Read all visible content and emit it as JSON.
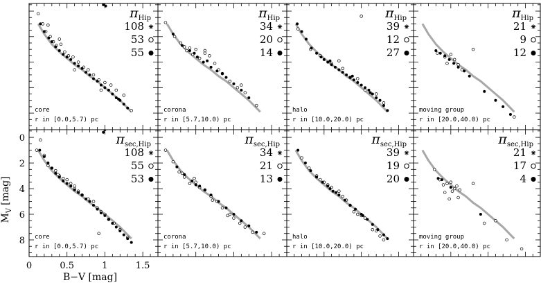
{
  "figure": {
    "ylabel": "M_V [mag]",
    "ylabel_main": "M",
    "ylabel_sub": "V",
    "ylabel_unit": "[mag]",
    "xlabel": "B−V [mag]"
  },
  "chart_data": {
    "type": "scatter",
    "xlim": [
      0,
      1.7
    ],
    "ylim": [
      9.3,
      -0.6
    ],
    "xticks": [
      "0",
      "0.5",
      "1",
      "1.5"
    ],
    "xtick_values": [
      0,
      0.5,
      1,
      1.5
    ],
    "yticks": [
      "0",
      "2",
      "4",
      "6",
      "8"
    ],
    "ytick_values": [
      0,
      2,
      4,
      6,
      8
    ],
    "grid": false,
    "legend_position": "top-right",
    "reference_curve_color": "#a8a8a8",
    "reference_curve": {
      "x": [
        0.12,
        0.2,
        0.3,
        0.4,
        0.5,
        0.6,
        0.7,
        0.8,
        0.9,
        1.0,
        1.1,
        1.2,
        1.3,
        1.35
      ],
      "y": [
        1.0,
        1.8,
        2.6,
        3.2,
        3.7,
        4.2,
        4.6,
        5.1,
        5.5,
        6.0,
        6.5,
        7.0,
        7.6,
        7.9
      ]
    },
    "rows": [
      {
        "legend_symbol": "π",
        "legend_subscript": "Hip",
        "panels": [
          {
            "name": "core",
            "range": "r in [0.0,5.7) pc",
            "counts": [
              {
                "symbol": "star",
                "value": "108"
              },
              {
                "symbol": "open",
                "value": "53"
              },
              {
                "symbol": "filled",
                "value": "55"
              }
            ],
            "open": {
              "x": [
                0.12,
                0.18,
                0.22,
                0.28,
                0.32,
                0.36,
                0.42,
                0.47,
                0.52,
                0.58,
                0.65,
                0.72,
                0.78,
                0.85,
                0.92,
                1.0,
                1.08,
                1.15,
                1.25,
                0.25,
                0.4,
                0.6,
                0.95,
                1.35
              ],
              "y": [
                0.2,
                1.0,
                1.6,
                2.0,
                2.4,
                2.7,
                2.6,
                3.2,
                3.5,
                3.6,
                4.0,
                4.4,
                4.6,
                5.0,
                5.4,
                5.6,
                5.8,
                6.2,
                6.6,
                1.1,
                2.2,
                4.6,
                6.2,
                7.8
              ],
              "n": 53
            },
            "filled": {
              "x": [
                0.15,
                0.2,
                0.26,
                0.3,
                0.35,
                0.4,
                0.45,
                0.5,
                0.55,
                0.6,
                0.65,
                0.7,
                0.75,
                0.8,
                0.85,
                0.9,
                0.95,
                1.0,
                1.05,
                1.1,
                1.15,
                1.2,
                1.25,
                1.3,
                0.98,
                1.01,
                1.18
              ],
              "y": [
                1.0,
                1.6,
                2.1,
                2.4,
                2.8,
                3.1,
                3.4,
                3.6,
                3.8,
                4.1,
                4.3,
                4.5,
                4.8,
                5.0,
                5.3,
                5.5,
                5.8,
                6.0,
                6.2,
                6.5,
                6.8,
                7.0,
                7.3,
                7.6,
                -0.5,
                -0.4,
                6.9
              ],
              "n": 55
            }
          },
          {
            "name": "corona",
            "range": "r in [5.7,10.0) pc",
            "counts": [
              {
                "symbol": "star",
                "value": "34"
              },
              {
                "symbol": "open",
                "value": "20"
              },
              {
                "symbol": "filled",
                "value": "14"
              }
            ],
            "open": {
              "x": [
                0.1,
                0.22,
                0.3,
                0.38,
                0.46,
                0.55,
                0.62,
                0.68,
                0.75,
                0.85,
                0.95,
                1.05,
                1.15,
                1.3,
                0.35,
                0.5,
                0.42,
                0.8,
                1.1,
                0.62
              ],
              "y": [
                0.9,
                2.0,
                2.5,
                3.1,
                3.4,
                3.7,
                3.3,
                3.5,
                4.1,
                4.9,
                5.5,
                6.0,
                6.4,
                7.4,
                2.8,
                3.0,
                2.9,
                4.6,
                5.8,
                3.1
              ],
              "n": 20
            },
            "filled": {
              "x": [
                0.2,
                0.32,
                0.42,
                0.52,
                0.6,
                0.7,
                0.78,
                0.9,
                1.0,
                1.1,
                0.48,
                0.65,
                0.85,
                1.2
              ],
              "y": [
                1.8,
                2.7,
                3.1,
                3.6,
                4.0,
                4.4,
                4.7,
                5.2,
                5.7,
                6.2,
                3.3,
                3.9,
                4.9,
                6.8
              ],
              "n": 14
            }
          },
          {
            "name": "halo",
            "range": "r in [10.0,20.0) pc",
            "counts": [
              {
                "symbol": "star",
                "value": "39"
              },
              {
                "symbol": "open",
                "value": "12"
              },
              {
                "symbol": "filled",
                "value": "27"
              }
            ],
            "open": {
              "x": [
                0.15,
                0.32,
                0.45,
                0.6,
                0.75,
                0.85,
                0.95,
                1.05,
                1.2,
                1.3,
                0.7,
                1.0
              ],
              "y": [
                1.4,
                3.0,
                3.5,
                4.1,
                4.5,
                5.2,
                5.3,
                6.2,
                6.5,
                7.2,
                3.9,
                0.4
              ],
              "n": 12
            },
            "filled": {
              "x": [
                0.14,
                0.2,
                0.26,
                0.33,
                0.4,
                0.46,
                0.5,
                0.55,
                0.6,
                0.65,
                0.7,
                0.75,
                0.8,
                0.85,
                0.9,
                0.95,
                1.0,
                1.05,
                1.1,
                1.15,
                1.2,
                1.25,
                1.3,
                1.35,
                0.58,
                0.88,
                1.12
              ],
              "y": [
                1.0,
                1.6,
                2.2,
                2.9,
                3.3,
                3.6,
                3.8,
                4.0,
                4.2,
                4.4,
                4.6,
                4.8,
                5.0,
                5.2,
                5.4,
                5.6,
                5.8,
                6.0,
                6.2,
                6.5,
                6.8,
                7.0,
                7.4,
                7.8,
                3.9,
                5.1,
                6.4
              ],
              "n": 27
            }
          },
          {
            "name": "moving group",
            "range": "r in [20.0,40.0) pc",
            "counts": [
              {
                "symbol": "star",
                "value": "21"
              },
              {
                "symbol": "open",
                "value": "9"
              },
              {
                "symbol": "filled",
                "value": "12"
              }
            ],
            "open": {
              "x": [
                0.32,
                0.42,
                0.5,
                0.55,
                0.65,
                0.8,
                1.35,
                0.6,
                0.45
              ],
              "y": [
                3.3,
                3.6,
                3.4,
                3.8,
                4.6,
                3.0,
                8.3,
                4.2,
                4.1
              ],
              "n": 9
            },
            "filled": {
              "x": [
                0.3,
                0.36,
                0.42,
                0.48,
                0.54,
                0.6,
                0.68,
                0.75,
                0.95,
                1.1,
                1.2,
                1.3
              ],
              "y": [
                3.1,
                3.3,
                3.5,
                3.8,
                4.1,
                4.4,
                4.7,
                5.1,
                6.3,
                7.0,
                7.5,
                8.1
              ],
              "n": 12
            }
          }
        ]
      },
      {
        "legend_symbol": "π",
        "legend_subscript": "sec,Hip",
        "panels": [
          {
            "name": "core",
            "range": "r in [0.0,5.7) pc",
            "counts": [
              {
                "symbol": "star",
                "value": "108"
              },
              {
                "symbol": "open",
                "value": "55"
              },
              {
                "symbol": "filled",
                "value": "53"
              }
            ],
            "open": {
              "x": [
                0.1,
                0.15,
                0.2,
                0.25,
                0.3,
                0.35,
                0.4,
                0.45,
                0.5,
                0.55,
                0.6,
                0.65,
                0.7,
                0.78,
                0.85,
                0.9,
                0.95,
                1.0,
                1.05,
                1.12,
                1.2,
                1.3,
                0.38,
                0.6,
                0.92
              ],
              "y": [
                1.0,
                0.2,
                1.4,
                2.2,
                2.4,
                2.6,
                3.0,
                3.2,
                3.3,
                3.6,
                3.8,
                4.2,
                4.5,
                4.8,
                5.0,
                5.5,
                5.8,
                6.0,
                6.4,
                6.7,
                7.2,
                7.8,
                2.9,
                4.0,
                7.5
              ],
              "n": 55
            },
            "filled": {
              "x": [
                0.14,
                0.2,
                0.25,
                0.3,
                0.35,
                0.4,
                0.45,
                0.5,
                0.55,
                0.6,
                0.65,
                0.7,
                0.75,
                0.8,
                0.85,
                0.9,
                0.95,
                1.0,
                1.05,
                1.1,
                1.15,
                1.2,
                1.25,
                1.3,
                1.35,
                0.98,
                1.0
              ],
              "y": [
                1.0,
                1.5,
                2.0,
                2.4,
                2.8,
                3.1,
                3.4,
                3.6,
                3.8,
                4.1,
                4.3,
                4.5,
                4.8,
                5.0,
                5.3,
                5.6,
                5.9,
                6.1,
                6.4,
                6.7,
                7.0,
                7.3,
                7.6,
                7.9,
                8.2,
                -0.4,
                -0.6
              ],
              "n": 53
            }
          },
          {
            "name": "corona",
            "range": "r in [5.7,10.0) pc",
            "counts": [
              {
                "symbol": "star",
                "value": "34"
              },
              {
                "symbol": "open",
                "value": "21"
              },
              {
                "symbol": "filled",
                "value": "13"
              }
            ],
            "open": {
              "x": [
                0.1,
                0.2,
                0.28,
                0.35,
                0.42,
                0.48,
                0.55,
                0.62,
                0.7,
                0.78,
                0.85,
                0.92,
                1.0,
                1.08,
                1.15,
                1.25,
                0.32,
                0.5,
                0.72,
                0.95,
                1.4
              ],
              "y": [
                1.0,
                1.9,
                2.7,
                3.1,
                3.6,
                3.2,
                3.9,
                4.1,
                4.6,
                5.0,
                5.5,
                6.1,
                6.3,
                6.7,
                7.0,
                7.4,
                2.8,
                3.5,
                4.9,
                6.0,
                7.5
              ],
              "n": 21
            },
            "filled": {
              "x": [
                0.25,
                0.35,
                0.45,
                0.55,
                0.62,
                0.7,
                0.8,
                0.9,
                1.0,
                1.1,
                1.2,
                1.3,
                0.5
              ],
              "y": [
                2.3,
                2.9,
                3.4,
                3.8,
                4.1,
                4.5,
                5.0,
                5.5,
                6.0,
                6.5,
                6.9,
                7.4,
                3.7
              ],
              "n": 13
            }
          },
          {
            "name": "halo",
            "range": "r in [10.0,20.0) pc",
            "counts": [
              {
                "symbol": "star",
                "value": "39"
              },
              {
                "symbol": "open",
                "value": "19"
              },
              {
                "symbol": "filled",
                "value": "20"
              }
            ],
            "open": {
              "x": [
                0.2,
                0.3,
                0.4,
                0.5,
                0.6,
                0.7,
                0.8,
                0.85,
                0.9,
                0.95,
                1.05,
                1.15,
                1.25,
                1.3,
                0.55,
                0.75,
                1.0,
                0.45,
                1.2
              ],
              "y": [
                1.6,
                2.4,
                3.0,
                3.5,
                3.9,
                4.2,
                4.9,
                5.3,
                5.8,
                6.0,
                6.3,
                7.2,
                7.7,
                8.0,
                3.7,
                4.6,
                6.1,
                3.3,
                7.3
              ],
              "n": 19
            },
            "filled": {
              "x": [
                0.15,
                0.25,
                0.32,
                0.4,
                0.48,
                0.55,
                0.62,
                0.7,
                0.78,
                0.85,
                0.92,
                1.0,
                1.08,
                1.15,
                1.22,
                1.3,
                1.35,
                0.66,
                1.02,
                0.58
              ],
              "y": [
                1.0,
                2.0,
                2.6,
                3.1,
                3.5,
                3.8,
                4.2,
                4.5,
                4.9,
                5.3,
                5.6,
                6.0,
                6.4,
                6.8,
                7.2,
                7.6,
                7.9,
                4.3,
                6.1,
                4.0
              ],
              "n": 20
            }
          },
          {
            "name": "moving group",
            "range": "r in [20.0,40.0) pc",
            "counts": [
              {
                "symbol": "star",
                "value": "21"
              },
              {
                "symbol": "open",
                "value": "17"
              },
              {
                "symbol": "filled",
                "value": "4"
              }
            ],
            "open": {
              "x": [
                0.28,
                0.35,
                0.4,
                0.45,
                0.5,
                0.55,
                0.6,
                0.42,
                0.52,
                0.62,
                0.8,
                0.95,
                1.1,
                1.25,
                0.48,
                0.58,
                1.45
              ],
              "y": [
                2.5,
                3.3,
                3.7,
                3.6,
                3.5,
                4.0,
                4.7,
                4.3,
                4.2,
                4.1,
                3.6,
                6.7,
                6.5,
                8.0,
                4.8,
                3.8,
                8.7
              ],
              "n": 17
            },
            "filled": {
              "x": [
                0.33,
                0.38,
                0.9,
                0.5
              ],
              "y": [
                3.2,
                3.3,
                6.0,
                3.9
              ],
              "n": 4
            }
          }
        ]
      }
    ]
  }
}
